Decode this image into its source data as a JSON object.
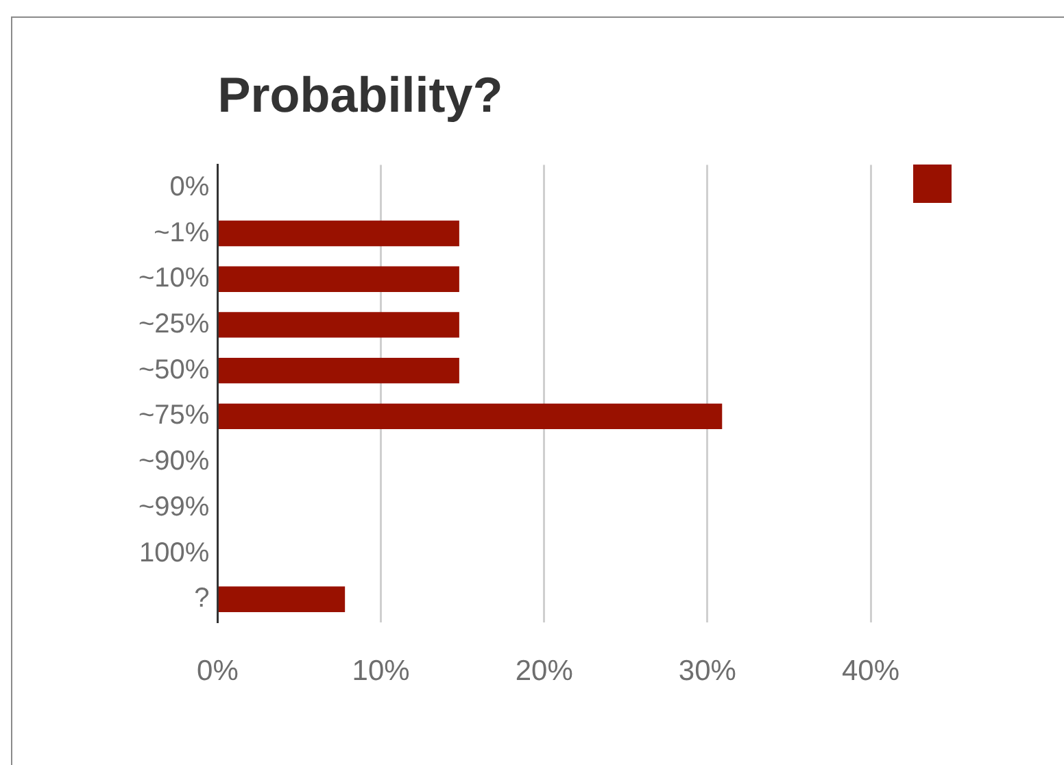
{
  "chart_data": {
    "type": "bar",
    "orientation": "horizontal",
    "title": "Probability?",
    "categories": [
      "0%",
      "~1%",
      "~10%",
      "~25%",
      "~50%",
      "~75%",
      "~90%",
      "~99%",
      "100%",
      "?"
    ],
    "series": [
      {
        "color": "#991100",
        "values": [
          0,
          14.8,
          14.8,
          14.8,
          14.8,
          30.9,
          0,
          0,
          0,
          7.8
        ]
      }
    ],
    "xlim": [
      0,
      40
    ],
    "xticks": [
      {
        "value": 0,
        "label": "0%"
      },
      {
        "value": 10,
        "label": "10%"
      },
      {
        "value": 20,
        "label": "20%"
      },
      {
        "value": 30,
        "label": "30%"
      },
      {
        "value": 40,
        "label": "40%"
      }
    ],
    "grid": "x"
  }
}
